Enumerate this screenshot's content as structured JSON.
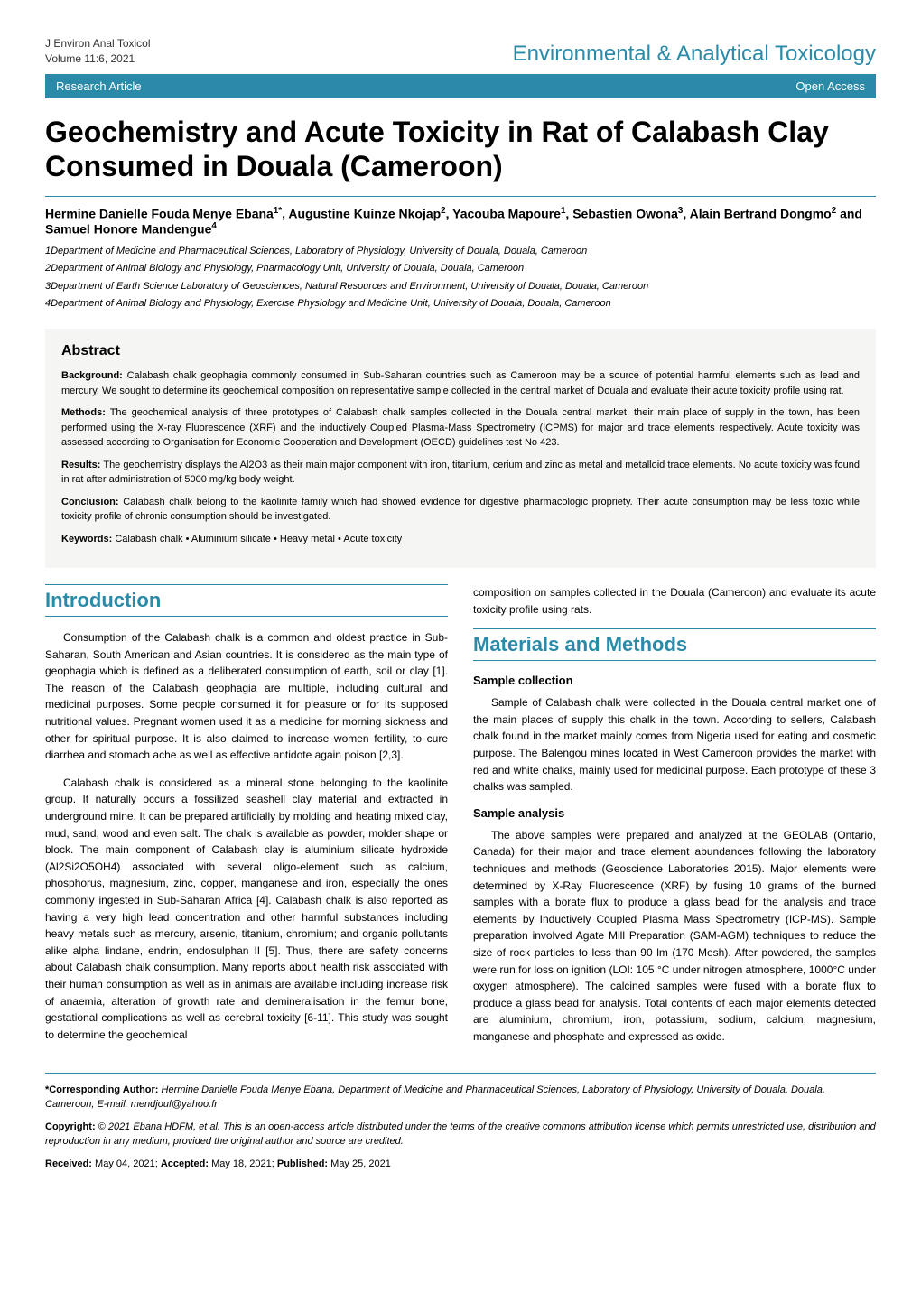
{
  "colors": {
    "accent": "#2a8aa8",
    "abstract_bg": "#f5f5f4",
    "text": "#000000",
    "page_bg": "#ffffff"
  },
  "header": {
    "journal_abbrev": "J Environ Anal Toxicol",
    "volume_line": "Volume 11:6, 2021",
    "journal_full": "Environmental & Analytical Toxicology"
  },
  "banner": {
    "left": "Research Article",
    "right": "Open Access"
  },
  "title": "Geochemistry and Acute Toxicity in Rat of Calabash Clay Consumed in Douala (Cameroon)",
  "authors_html": "Hermine Danielle Fouda Menye Ebana<sup>1*</sup>, Augustine Kuinze Nkojap<sup>2</sup>, Yacouba Mapoure<sup>1</sup>, Sebastien Owona<sup>3</sup>, Alain Bertrand Dongmo<sup>2</sup> and Samuel Honore Mandengue<sup>4</sup>",
  "affiliations": [
    "1Department of Medicine and Pharmaceutical Sciences, Laboratory of Physiology, University of Douala, Douala, Cameroon",
    "2Department of Animal Biology and Physiology, Pharmacology Unit, University of Douala, Douala, Cameroon",
    "3Department of Earth Science Laboratory of Geosciences, Natural Resources and Environment, University of Douala, Douala, Cameroon",
    "4Department of Animal Biology and Physiology, Exercise Physiology and Medicine Unit, University of Douala, Douala, Cameroon"
  ],
  "abstract": {
    "heading": "Abstract",
    "background_label": "Background:",
    "background": "Calabash chalk geophagia commonly consumed in Sub-Saharan countries such as Cameroon may be a source of potential harmful elements such as lead and mercury. We sought to determine its geochemical composition on representative sample collected in the central market of Douala and evaluate their acute toxicity profile using rat.",
    "methods_label": "Methods:",
    "methods": "The geochemical analysis of three prototypes of Calabash chalk samples collected in the Douala central market, their main place of supply in the town, has been performed using the X-ray Fluorescence (XRF) and the inductively Coupled Plasma-Mass Spectrometry (ICPMS) for major and trace elements respectively. Acute toxicity was assessed according to Organisation for Economic Cooperation and Development (OECD) guidelines test No 423.",
    "results_label": "Results:",
    "results": "The geochemistry displays the Al2O3 as their main major component with iron, titanium, cerium and zinc as metal and metalloid trace elements. No acute toxicity was found in rat after administration of 5000 mg/kg body weight.",
    "conclusion_label": "Conclusion:",
    "conclusion": "Calabash chalk belong to the kaolinite family which had showed evidence for digestive pharmacologic propriety. Their acute consumption may be less toxic while toxicity profile of chronic consumption should be investigated.",
    "keywords_label": "Keywords:",
    "keywords": "Calabash chalk • Aluminium silicate • Heavy metal • Acute toxicity"
  },
  "sections": {
    "introduction_heading": "Introduction",
    "intro_p1": "Consumption of the Calabash chalk is a common and oldest practice in Sub-Saharan, South American and Asian countries. It is considered as the main type of geophagia which is defined as a deliberated consumption of earth, soil or clay [1]. The reason of the Calabash geophagia are multiple, including cultural and medicinal purposes. Some people consumed it for pleasure or for its supposed nutritional values. Pregnant women used it as a medicine for morning sickness and other for spiritual purpose. It is also claimed to increase women fertility, to cure diarrhea and stomach ache as well as effective antidote again poison [2,3].",
    "intro_p2": "Calabash chalk is considered as a mineral stone belonging to the kaolinite group. It naturally occurs a fossilized seashell clay material and extracted in underground mine. It can be prepared artificially by molding and heating mixed clay, mud, sand, wood and even salt. The chalk is available as powder, molder shape or block. The main component of Calabash clay is aluminium silicate hydroxide (Al2Si2O5OH4) associated with several oligo-element such as calcium, phosphorus, magnesium, zinc, copper, manganese and iron, especially the ones commonly ingested in Sub-Saharan Africa [4]. Calabash chalk is also reported as having a very high lead concentration and other harmful substances including heavy metals such as mercury, arsenic, titanium, chromium; and organic pollutants alike alpha lindane, endrin, endosulphan II [5]. Thus, there are safety concerns about Calabash chalk consumption. Many reports about health risk associated with their human consumption as well as in animals are available including increase risk of anaemia, alteration of growth rate and demineralisation in the femur bone, gestational complications as well as cerebral toxicity [6-11]. This study was sought to determine the geochemical",
    "intro_p2_cont": "composition on samples collected in the Douala (Cameroon) and evaluate its acute toxicity profile using rats.",
    "mm_heading": "Materials and Methods",
    "sample_collection_h": "Sample collection",
    "sample_collection_p": "Sample of Calabash chalk were collected in the Douala central market one of the main places of supply this chalk in the town. According to sellers, Calabash chalk found in the market mainly comes from Nigeria used for eating and cosmetic purpose. The Balengou mines located in West Cameroon provides the market with red and white chalks, mainly used for medicinal purpose. Each prototype of these 3 chalks was sampled.",
    "sample_analysis_h": "Sample analysis",
    "sample_analysis_p": "The above samples were prepared and analyzed at the GEOLAB (Ontario, Canada) for their major and trace element abundances following the laboratory techniques and methods (Geoscience Laboratories 2015). Major elements were determined by X-Ray Fluorescence (XRF) by fusing 10 grams of the burned samples with a borate flux to produce a glass bead for the analysis and trace elements by Inductively Coupled Plasma Mass Spectrometry (ICP-MS). Sample preparation involved Agate Mill Preparation (SAM-AGM) techniques to reduce the size of rock particles to less than 90 lm (170 Mesh). After powdered, the samples were run for loss on ignition (LOI: 105 °C under nitrogen atmosphere, 1000°C under oxygen atmosphere). The calcined samples were fused with a borate flux to produce a glass bead for analysis. Total contents of each major elements detected are aluminium, chromium, iron, potassium, sodium, calcium, magnesium, manganese and phosphate and expressed as oxide."
  },
  "footer": {
    "corresponding_label": "*Corresponding Author:",
    "corresponding": "Hermine Danielle Fouda Menye Ebana, Department of Medicine and Pharmaceutical Sciences, Laboratory of Physiology, University of Douala, Douala, Cameroon, E-mail: mendjouf@yahoo.fr",
    "copyright_label": "Copyright:",
    "copyright": "© 2021 Ebana HDFM, et al. This is an open-access article distributed under the terms of the creative commons attribution license which permits unrestricted use, distribution and reproduction in any medium, provided the original author and source are credited.",
    "received_label": "Received:",
    "received": "May 04, 2021;",
    "accepted_label": "Accepted:",
    "accepted": "May 18, 2021;",
    "published_label": "Published:",
    "published": "May 25, 2021"
  }
}
